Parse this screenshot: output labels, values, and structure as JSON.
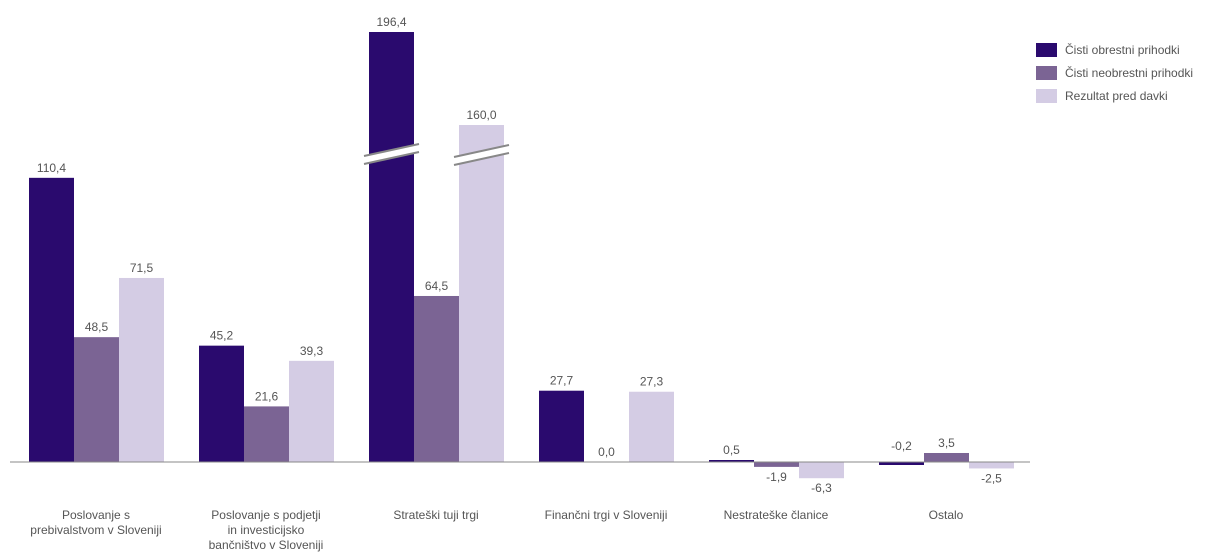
{
  "title": "",
  "chart_data": {
    "type": "bar",
    "title": "",
    "xlabel": "",
    "ylabel": "",
    "ylim": [
      -10,
      200
    ],
    "grid": false,
    "legend_position": "top-right",
    "categories": [
      "Poslovanje  s\nprebivalstvom  v Sloveniji",
      "Poslovanje  s podjetji\nin investicijsko\nbančništvo v Sloveniji",
      "Strateški tuji trgi",
      "Finančni trgi v Sloveniji",
      "Nestrateške članice",
      "Ostalo"
    ],
    "series": [
      {
        "name": "Čisti obrestni prihodki",
        "color": "#2a0a6e",
        "values": [
          110.4,
          45.2,
          196.4,
          27.7,
          0.5,
          -0.2
        ],
        "labels": [
          "110,4",
          "45,2",
          "196,4",
          "27,7",
          "0,5",
          "-0,2"
        ]
      },
      {
        "name": "Čisti neobrestni prihodki",
        "color": "#7b6494",
        "values": [
          48.5,
          21.6,
          64.5,
          0.0,
          -1.9,
          3.5
        ],
        "labels": [
          "48,5",
          "21,6",
          "64,5",
          "0,0",
          "-1,9",
          "3,5"
        ]
      },
      {
        "name": "Rezultat  pred davki",
        "color": "#d4cce4",
        "values": [
          71.5,
          39.3,
          160.0,
          27.3,
          -6.3,
          -2.5
        ],
        "labels": [
          "71,5",
          "39,3",
          "160,0",
          "27,3",
          "-6,3",
          "-2,5"
        ]
      }
    ],
    "axis_breaks": [
      [
        2,
        0
      ],
      [
        2,
        2
      ]
    ]
  }
}
